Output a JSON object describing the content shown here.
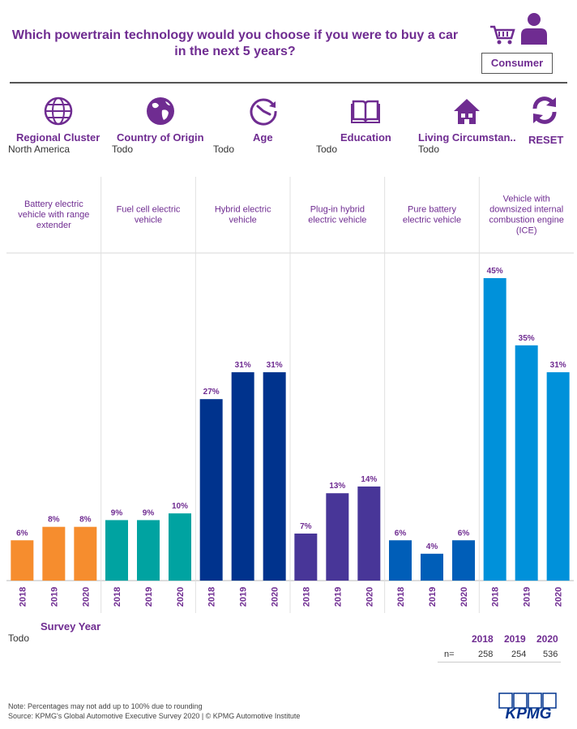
{
  "title_line1": "Which powertrain technology would you choose if you were to buy a car",
  "title_line2": "in the next 5 years?",
  "consumer_label": "Consumer",
  "filters": [
    {
      "label": "Regional Cluster",
      "value": "North America",
      "icon": "globe-icon"
    },
    {
      "label": "Country of Origin",
      "value": "Todo",
      "icon": "earth-icon"
    },
    {
      "label": "Age",
      "value": "Todo",
      "icon": "clock-icon"
    },
    {
      "label": "Education",
      "value": "Todo",
      "icon": "book-icon"
    },
    {
      "label": "Living Circumstan..",
      "value": "Todo",
      "icon": "house-icon"
    }
  ],
  "reset_label": "RESET",
  "chart_data": {
    "type": "bar",
    "categories": [
      "Battery electric vehicle with range extender",
      "Fuel cell electric vehicle",
      "Hybrid electric vehicle",
      "Plug-in hybrid electric vehicle",
      "Pure battery electric vehicle",
      "Vehicle with downsized internal combustion engine (ICE)"
    ],
    "panels": [
      {
        "name": "Battery electric vehicle with range extender",
        "color": "#f68d2e",
        "values": [
          6,
          8,
          8
        ]
      },
      {
        "name": "Fuel cell electric vehicle",
        "color": "#00a3a1",
        "values": [
          9,
          9,
          10
        ]
      },
      {
        "name": "Hybrid electric vehicle",
        "color": "#00338d",
        "values": [
          27,
          31,
          31
        ]
      },
      {
        "name": "Plug-in hybrid electric vehicle",
        "color": "#483698",
        "values": [
          7,
          13,
          14
        ]
      },
      {
        "name": "Pure battery electric vehicle",
        "color": "#005eb8",
        "values": [
          6,
          4,
          6
        ]
      },
      {
        "name": "Vehicle with downsized internal combustion engine (ICE)",
        "color": "#0091da",
        "values": [
          45,
          35,
          31
        ]
      }
    ],
    "x": [
      "2018",
      "2019",
      "2020"
    ],
    "value_suffix": "%",
    "xlabel": "Survey Year",
    "ylabel": "",
    "ylim": [
      0,
      50
    ]
  },
  "axis_filter_value": "Todo",
  "n_table": {
    "years": [
      "2018",
      "2019",
      "2020"
    ],
    "row_label": "n=",
    "values": [
      "258",
      "254",
      "536"
    ]
  },
  "note": "Note: Percentages may not add up to 100% due to rounding",
  "source": "Source: KPMG's Global Automotive Executive Survey 2020 | © KPMG Automotive Institute",
  "logo_text": "KPMG",
  "colors": {
    "brand_purple": "#6f2c91",
    "kpmg_blue": "#00338d"
  }
}
